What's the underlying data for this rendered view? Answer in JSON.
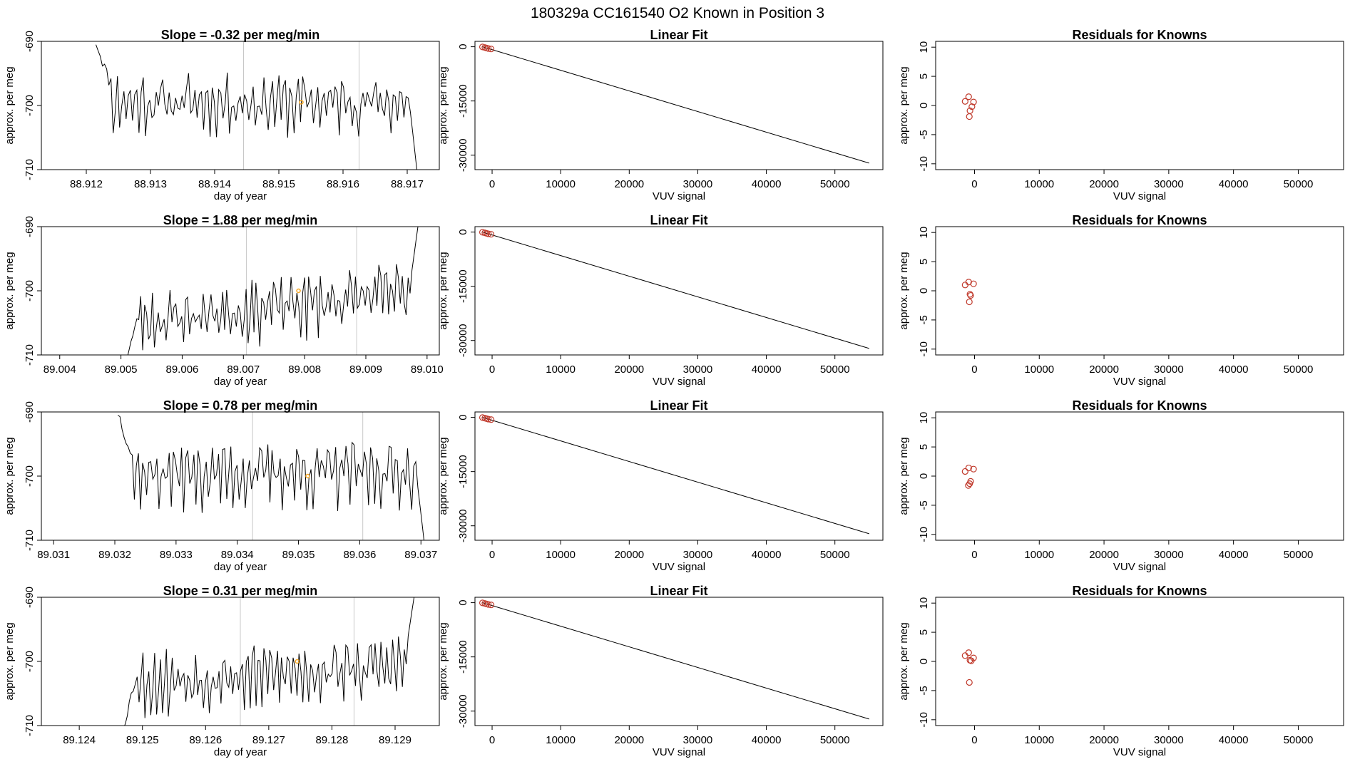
{
  "title": "180329a      CC161540   O2 Known in Position  3",
  "colors": {
    "trace": "#000000",
    "marker": "#f5a623",
    "circle": "#c0392b",
    "vline": "#c8c8c8"
  },
  "chart_data": [
    {
      "type": "line",
      "panel": "time-1",
      "title": "Slope =  -0.32  per meg/min",
      "xlabel": "day of year",
      "ylabel": "approx. per meg",
      "xlim": [
        88.9113,
        88.9175
      ],
      "ylim": [
        -710,
        -690
      ],
      "xticks": [
        "88.912",
        "88.913",
        "88.914",
        "88.915",
        "88.916",
        "88.917"
      ],
      "yticks": [
        "-690",
        "-700",
        "-710"
      ],
      "vlines": [
        88.91445,
        88.91625
      ],
      "marker": {
        "x": 88.91535,
        "y": -699.5
      },
      "series": [
        {
          "start": 88.91215,
          "end": 88.91715,
          "lead": [
            -690,
            -696
          ],
          "tail": [
            -698,
            -710
          ],
          "base": -699.5,
          "amp": 3.0,
          "trend": 0,
          "seed": 11
        }
      ]
    },
    {
      "type": "scatter",
      "panel": "fit-1",
      "title": "Linear Fit",
      "xlabel": "VUV signal",
      "ylabel": "approx. per meg",
      "xlim": [
        -2500,
        57000
      ],
      "ylim": [
        -34000,
        1500
      ],
      "xticks": [
        0,
        10000,
        20000,
        30000,
        40000,
        50000
      ],
      "yticks": [
        0,
        -15000,
        -30000
      ],
      "line": [
        [
          -1400,
          0
        ],
        [
          55000,
          -32200
        ]
      ],
      "points": [
        [
          -1400,
          -50
        ],
        [
          -1050,
          -210
        ],
        [
          -800,
          -360
        ],
        [
          -550,
          -480
        ],
        [
          -150,
          -610
        ]
      ]
    },
    {
      "type": "scatter",
      "panel": "resid-1",
      "title": "Residuals for Knowns",
      "xlabel": "VUV signal",
      "ylabel": "approx. per meg",
      "xlim": [
        -6000,
        57000
      ],
      "ylim": [
        -11,
        11
      ],
      "xticks": [
        0,
        10000,
        20000,
        30000,
        40000,
        50000
      ],
      "yticks": [
        10,
        5,
        0,
        -5,
        -10
      ],
      "points": [
        [
          -1450,
          0.7
        ],
        [
          -900,
          1.5
        ],
        [
          -700,
          -0.9
        ],
        [
          -800,
          -1.9
        ],
        [
          -400,
          -0.2
        ],
        [
          -150,
          0.6
        ]
      ]
    },
    {
      "type": "line",
      "panel": "time-2",
      "title": "Slope =  1.88  per meg/min",
      "xlabel": "day of year",
      "ylabel": "approx. per meg",
      "xlim": [
        89.0037,
        89.0102
      ],
      "ylim": [
        -710,
        -690
      ],
      "xticks": [
        "89.004",
        "89.005",
        "89.006",
        "89.007",
        "89.008",
        "89.009",
        "89.010"
      ],
      "yticks": [
        "-690",
        "-700",
        "-710"
      ],
      "vlines": [
        89.00705,
        89.00885
      ],
      "marker": {
        "x": 89.0079,
        "y": -700
      },
      "series": [
        {
          "start": 89.0051,
          "end": 89.00985,
          "lead": [
            -710,
            -704
          ],
          "tail": [
            -699,
            -690
          ],
          "base": -702.5,
          "amp": 3.2,
          "trend": 5.0,
          "seed": 23
        }
      ]
    },
    {
      "type": "scatter",
      "panel": "fit-2",
      "title": "Linear Fit",
      "xlabel": "VUV signal",
      "ylabel": "approx. per meg",
      "xlim": [
        -2500,
        57000
      ],
      "ylim": [
        -34000,
        1500
      ],
      "xticks": [
        0,
        10000,
        20000,
        30000,
        40000,
        50000
      ],
      "yticks": [
        0,
        -15000,
        -30000
      ],
      "line": [
        [
          -1400,
          0
        ],
        [
          55000,
          -32200
        ]
      ],
      "points": [
        [
          -1400,
          -50
        ],
        [
          -1050,
          -210
        ],
        [
          -800,
          -360
        ],
        [
          -550,
          -480
        ],
        [
          -150,
          -610
        ]
      ]
    },
    {
      "type": "scatter",
      "panel": "resid-2",
      "title": "Residuals for Knowns",
      "xlabel": "VUV signal",
      "ylabel": "approx. per meg",
      "xlim": [
        -6000,
        57000
      ],
      "ylim": [
        -11,
        11
      ],
      "xticks": [
        0,
        10000,
        20000,
        30000,
        40000,
        50000
      ],
      "yticks": [
        10,
        5,
        0,
        -5,
        -10
      ],
      "points": [
        [
          -1450,
          1.0
        ],
        [
          -900,
          1.5
        ],
        [
          -700,
          -0.6
        ],
        [
          -800,
          -1.9
        ],
        [
          -600,
          -0.8
        ],
        [
          -150,
          1.2
        ]
      ]
    },
    {
      "type": "line",
      "panel": "time-3",
      "title": "Slope =  0.78  per meg/min",
      "xlabel": "day of year",
      "ylabel": "approx. per meg",
      "xlim": [
        89.0308,
        89.0373
      ],
      "ylim": [
        -710,
        -690
      ],
      "xticks": [
        "89.031",
        "89.032",
        "89.033",
        "89.034",
        "89.035",
        "89.036",
        "89.037"
      ],
      "yticks": [
        "-690",
        "-700",
        "-710"
      ],
      "vlines": [
        89.03425,
        89.03605
      ],
      "marker": {
        "x": 89.03515,
        "y": -700
      },
      "series": [
        {
          "start": 89.03205,
          "end": 89.03705,
          "lead": [
            -690,
            -696
          ],
          "tail": [
            -699,
            -710
          ],
          "base": -699.5,
          "amp": 3.3,
          "trend": 0.5,
          "seed": 37
        }
      ]
    },
    {
      "type": "scatter",
      "panel": "fit-3",
      "title": "Linear Fit",
      "xlabel": "VUV signal",
      "ylabel": "approx. per meg",
      "xlim": [
        -2500,
        57000
      ],
      "ylim": [
        -34000,
        1500
      ],
      "xticks": [
        0,
        10000,
        20000,
        30000,
        40000,
        50000
      ],
      "yticks": [
        0,
        -15000,
        -30000
      ],
      "line": [
        [
          -1400,
          0
        ],
        [
          55000,
          -32200
        ]
      ],
      "points": [
        [
          -1400,
          -50
        ],
        [
          -1050,
          -210
        ],
        [
          -800,
          -360
        ],
        [
          -550,
          -480
        ],
        [
          -150,
          -610
        ]
      ]
    },
    {
      "type": "scatter",
      "panel": "resid-3",
      "title": "Residuals for Knowns",
      "xlabel": "VUV signal",
      "ylabel": "approx. per meg",
      "xlim": [
        -6000,
        57000
      ],
      "ylim": [
        -11,
        11
      ],
      "xticks": [
        0,
        10000,
        20000,
        30000,
        40000,
        50000
      ],
      "yticks": [
        10,
        5,
        0,
        -5,
        -10
      ],
      "points": [
        [
          -1450,
          0.8
        ],
        [
          -900,
          1.4
        ],
        [
          -600,
          -0.9
        ],
        [
          -750,
          -1.3
        ],
        [
          -950,
          -1.6
        ],
        [
          -150,
          1.2
        ]
      ]
    },
    {
      "type": "line",
      "panel": "time-4",
      "title": "Slope =  0.31  per meg/min",
      "xlabel": "day of year",
      "ylabel": "approx. per meg",
      "xlim": [
        89.1234,
        89.1297
      ],
      "ylim": [
        -710,
        -690
      ],
      "xticks": [
        "89.124",
        "89.125",
        "89.126",
        "89.127",
        "89.128",
        "89.129"
      ],
      "yticks": [
        "-690",
        "-700",
        "-710"
      ],
      "vlines": [
        89.12655,
        89.12835
      ],
      "marker": {
        "x": 89.12745,
        "y": -700
      },
      "series": [
        {
          "start": 89.1247,
          "end": 89.1293,
          "lead": [
            -710,
            -703
          ],
          "tail": [
            -698,
            -690
          ],
          "base": -702.0,
          "amp": 3.2,
          "trend": 3.0,
          "seed": 53
        }
      ]
    },
    {
      "type": "scatter",
      "panel": "fit-4",
      "title": "Linear Fit",
      "xlabel": "VUV signal",
      "ylabel": "approx. per meg",
      "xlim": [
        -2500,
        57000
      ],
      "ylim": [
        -34000,
        1500
      ],
      "xticks": [
        0,
        10000,
        20000,
        30000,
        40000,
        50000
      ],
      "yticks": [
        0,
        -15000,
        -30000
      ],
      "line": [
        [
          -1400,
          0
        ],
        [
          55000,
          -32200
        ]
      ],
      "points": [
        [
          -1400,
          -50
        ],
        [
          -1050,
          -210
        ],
        [
          -800,
          -360
        ],
        [
          -550,
          -480
        ],
        [
          -150,
          -610
        ]
      ]
    },
    {
      "type": "scatter",
      "panel": "resid-4",
      "title": "Residuals for Knowns",
      "xlabel": "VUV signal",
      "ylabel": "approx. per meg",
      "xlim": [
        -6000,
        57000
      ],
      "ylim": [
        -11,
        11
      ],
      "xticks": [
        0,
        10000,
        20000,
        30000,
        40000,
        50000
      ],
      "yticks": [
        10,
        5,
        0,
        -5,
        -10
      ],
      "points": [
        [
          -1450,
          1.0
        ],
        [
          -900,
          1.5
        ],
        [
          -700,
          0.2
        ],
        [
          -500,
          0.1
        ],
        [
          -150,
          0.6
        ],
        [
          -800,
          -3.6
        ]
      ]
    }
  ]
}
